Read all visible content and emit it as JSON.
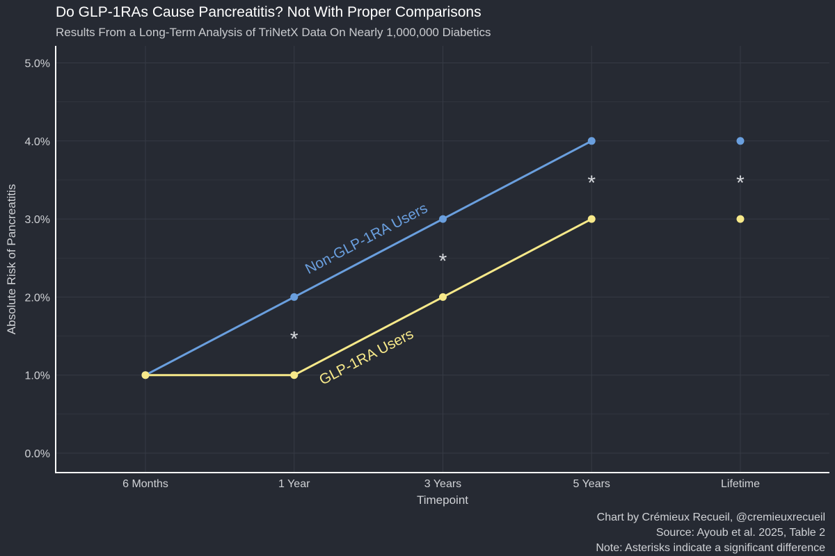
{
  "chart_data": {
    "type": "line",
    "title": "Do GLP-1RAs Cause Pancreatitis? Not With Proper Comparisons",
    "subtitle": "Results From a Long-Term Analysis of TriNetX Data On Nearly 1,000,000 Diabetics",
    "xlabel": "Timepoint",
    "ylabel": "Absolute Risk of Pancreatitis",
    "categories": [
      "6 Months",
      "1 Year",
      "3 Years",
      "5 Years",
      "Lifetime"
    ],
    "ylim": [
      0,
      5
    ],
    "yticks": [
      0,
      1,
      2,
      3,
      4,
      5
    ],
    "ytick_labels": [
      "0.0%",
      "1.0%",
      "2.0%",
      "3.0%",
      "4.0%",
      "5.0%"
    ],
    "series": [
      {
        "name": "Non-GLP-1RA Users",
        "values": [
          1,
          2,
          3,
          4,
          4
        ],
        "line_through": [
          0,
          1,
          2,
          3
        ],
        "color": "#6a9fde"
      },
      {
        "name": "GLP-1RA Users",
        "values": [
          1,
          1,
          2,
          3,
          3
        ],
        "line_through": [
          0,
          1,
          2,
          3
        ],
        "color": "#f7e98a"
      }
    ],
    "significance_markers": [
      {
        "category": "1 Year",
        "symbol": "*"
      },
      {
        "category": "3 Years",
        "symbol": "*"
      },
      {
        "category": "5 Years",
        "symbol": "*"
      },
      {
        "category": "Lifetime",
        "symbol": "*"
      }
    ],
    "grid": true,
    "legend": "direct labels on lines",
    "caption_lines": [
      "Chart by Crémieux Recueil, @cremieuxrecueil",
      "Source: Ayoub et al. 2025, Table 2",
      "Note: Asterisks indicate a significant difference"
    ],
    "colors": {
      "background": "#262a33",
      "grid": "#363b45",
      "axis": "#ffffff",
      "text": "#d0d2d6"
    }
  }
}
